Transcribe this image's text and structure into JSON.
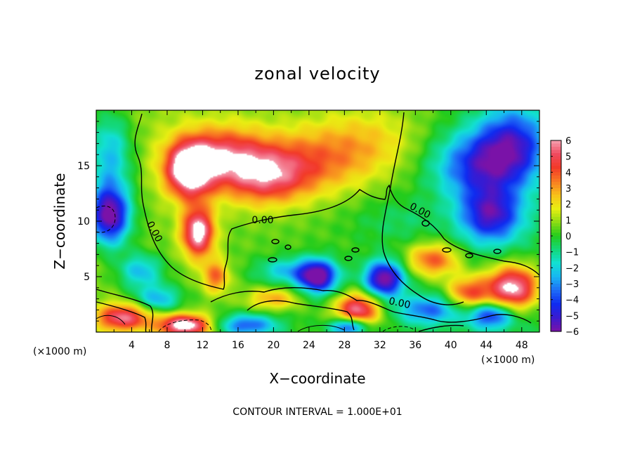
{
  "chart_data": {
    "type": "heatmap",
    "title": "zonal velocity",
    "xlabel": "X−coordinate",
    "ylabel": "Z−coordinate",
    "x_unit_left": "(×1000 m)",
    "x_unit_right": "(×1000 m)",
    "xlim": [
      0,
      50
    ],
    "ylim": [
      0,
      20
    ],
    "xticks": [
      "4",
      "8",
      "12",
      "16",
      "20",
      "24",
      "28",
      "32",
      "36",
      "40",
      "44",
      "48"
    ],
    "yticks": [
      "5",
      "10",
      "15"
    ],
    "colorbar": {
      "range": [
        -6,
        6
      ],
      "ticks": [
        "6",
        "5",
        "4",
        "3",
        "2",
        "1",
        "0",
        "−1",
        "−2",
        "−3",
        "−4",
        "−5",
        "−6"
      ],
      "colors": [
        "#7a12a8",
        "#3b1ad0",
        "#0f2bf0",
        "#1e6cf6",
        "#18b6f2",
        "#12e0d2",
        "#13d87a",
        "#23cc1c",
        "#8cdc14",
        "#e9ee12",
        "#f8c01a",
        "#f87a22",
        "#f23a28",
        "#f04a60",
        "#f6a2b2",
        "#ffffff"
      ]
    },
    "contour_labels": [
      "0.00",
      "0.00",
      "0.00",
      "0.00"
    ],
    "footer": "CONTOUR INTERVAL =  1.000E+01",
    "features": [
      {
        "x": 10.5,
        "z": 14.5,
        "sx": 2.6,
        "sz": 2.4,
        "v": 6.5
      },
      {
        "x": 11.5,
        "z": 9.0,
        "sx": 1.8,
        "sz": 2.2,
        "v": 6.2
      },
      {
        "x": 14.0,
        "z": 16.0,
        "sx": 5.0,
        "sz": 2.5,
        "v": 4.0
      },
      {
        "x": 19.0,
        "z": 14.0,
        "sx": 5.0,
        "sz": 2.5,
        "v": 4.2
      },
      {
        "x": 25.0,
        "z": 15.5,
        "sx": 7.0,
        "sz": 3.0,
        "v": 2.6
      },
      {
        "x": 31.0,
        "z": 17.5,
        "sx": 6.0,
        "sz": 3.0,
        "v": 1.4
      },
      {
        "x": 43.0,
        "z": 15.0,
        "sx": 5.0,
        "sz": 3.0,
        "v": -4.2
      },
      {
        "x": 47.0,
        "z": 17.0,
        "sx": 4.0,
        "sz": 3.5,
        "v": -4.5
      },
      {
        "x": 44.5,
        "z": 10.5,
        "sx": 3.5,
        "sz": 2.5,
        "v": -5.2
      },
      {
        "x": 1.5,
        "z": 16.0,
        "sx": 2.5,
        "sz": 4.0,
        "v": -3.2
      },
      {
        "x": 1.5,
        "z": 10.5,
        "sx": 2.3,
        "sz": 2.6,
        "v": -6.8
      },
      {
        "x": 5.0,
        "z": 5.5,
        "sx": 2.5,
        "sz": 1.6,
        "v": -3.0
      },
      {
        "x": 3.0,
        "z": 1.3,
        "sx": 3.0,
        "sz": 1.2,
        "v": 5.0
      },
      {
        "x": 10.0,
        "z": 0.6,
        "sx": 3.0,
        "sz": 1.0,
        "v": 6.5
      },
      {
        "x": 17.0,
        "z": 0.6,
        "sx": 3.5,
        "sz": 1.0,
        "v": -4.0
      },
      {
        "x": 25.0,
        "z": 5.0,
        "sx": 2.2,
        "sz": 1.5,
        "v": -6.5
      },
      {
        "x": 32.5,
        "z": 4.8,
        "sx": 2.2,
        "sz": 1.6,
        "v": -6.5
      },
      {
        "x": 29.5,
        "z": 2.0,
        "sx": 2.5,
        "sz": 1.5,
        "v": 5.5
      },
      {
        "x": 28.5,
        "z": 0.5,
        "sx": 2.0,
        "sz": 0.8,
        "v": -5.0
      },
      {
        "x": 38.0,
        "z": 6.5,
        "sx": 3.0,
        "sz": 1.5,
        "v": 3.8
      },
      {
        "x": 42.0,
        "z": 3.5,
        "sx": 2.5,
        "sz": 1.5,
        "v": 4.0
      },
      {
        "x": 47.0,
        "z": 4.0,
        "sx": 3.0,
        "sz": 2.0,
        "v": 6.5
      },
      {
        "x": 44.5,
        "z": 1.5,
        "sx": 2.5,
        "sz": 1.2,
        "v": -4.5
      },
      {
        "x": 37.5,
        "z": 2.0,
        "sx": 3.5,
        "sz": 1.3,
        "v": -3.5
      },
      {
        "x": 21.5,
        "z": 5.5,
        "sx": 3.5,
        "sz": 1.2,
        "v": -2.5
      },
      {
        "x": 13.5,
        "z": 5.0,
        "sx": 1.5,
        "sz": 1.5,
        "v": 3.2
      },
      {
        "x": 7.0,
        "z": 3.0,
        "sx": 2.5,
        "sz": 1.2,
        "v": -3.0
      },
      {
        "x": 20.0,
        "z": 3.0,
        "sx": 3.0,
        "sz": 1.0,
        "v": 2.5
      },
      {
        "x": 34.0,
        "z": 10.0,
        "sx": 5.0,
        "sz": 2.0,
        "v": -0.8
      }
    ]
  }
}
